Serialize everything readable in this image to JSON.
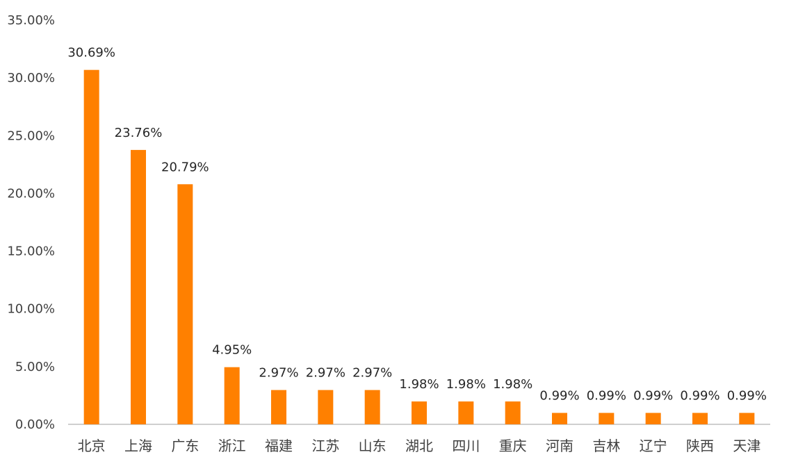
{
  "chart_data": {
    "type": "bar",
    "title": "",
    "xlabel": "",
    "ylabel": "",
    "categories": [
      "北京",
      "上海",
      "广东",
      "浙江",
      "福建",
      "江苏",
      "山东",
      "湖北",
      "四川",
      "重庆",
      "河南",
      "吉林",
      "辽宁",
      "陕西",
      "天津"
    ],
    "values": [
      30.69,
      23.76,
      20.79,
      4.95,
      2.97,
      2.97,
      2.97,
      1.98,
      1.98,
      1.98,
      0.99,
      0.99,
      0.99,
      0.99,
      0.99
    ],
    "data_labels": [
      "30.69%",
      "23.76%",
      "20.79%",
      "4.95%",
      "2.97%",
      "2.97%",
      "2.97%",
      "1.98%",
      "1.98%",
      "1.98%",
      "0.99%",
      "0.99%",
      "0.99%",
      "0.99%",
      "0.99%"
    ],
    "ylim": [
      0,
      35
    ],
    "y_ticks": [
      0,
      5,
      10,
      15,
      20,
      25,
      30,
      35
    ],
    "y_tick_labels": [
      "0.00%",
      "5.00%",
      "10.00%",
      "15.00%",
      "20.00%",
      "25.00%",
      "30.00%",
      "35.00%"
    ],
    "bar_color": "#FF8000",
    "grid": false,
    "legend": "none"
  }
}
